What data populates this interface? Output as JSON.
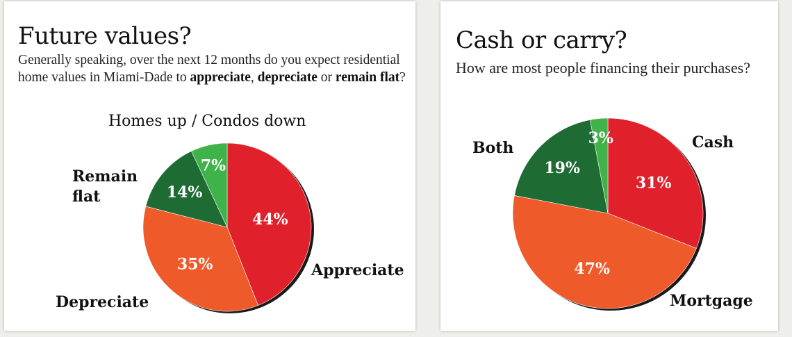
{
  "chart_data": [
    {
      "type": "pie",
      "title": "Future values?",
      "question": {
        "part1": "Generally speaking, over the next 12 months do you expect residential home values in Miami-Dade to ",
        "appreciate": "appreciate",
        "sep1": ", ",
        "depreciate": "depreciate",
        "sep2": " or ",
        "remain_flat": "remain flat",
        "end": "?"
      },
      "slices": [
        {
          "label": "Appreciate",
          "value": 44,
          "value_label": "44%",
          "color": "#e0202a"
        },
        {
          "label": "Depreciate",
          "value": 35,
          "value_label": "35%",
          "color": "#ee5a2a"
        },
        {
          "label": "Remain flat",
          "value": 14,
          "value_label": "14%",
          "color": "#1f6b34"
        },
        {
          "label": "Homes up / Condos down",
          "value": 7,
          "value_label": "7%",
          "color": "#3fb34a"
        }
      ]
    },
    {
      "type": "pie",
      "title": "Cash or carry?",
      "question": "How are most people financing their purchases?",
      "slices": [
        {
          "label": "Cash",
          "value": 31,
          "value_label": "31%",
          "color": "#e0202a"
        },
        {
          "label": "Mortgage",
          "value": 47,
          "value_label": "47%",
          "color": "#ee5a2a"
        },
        {
          "label": "Both",
          "value": 19,
          "value_label": "19%",
          "color": "#1f6b34"
        },
        {
          "label": "",
          "value": 3,
          "value_label": "3%",
          "color": "#3fb34a"
        }
      ]
    }
  ]
}
